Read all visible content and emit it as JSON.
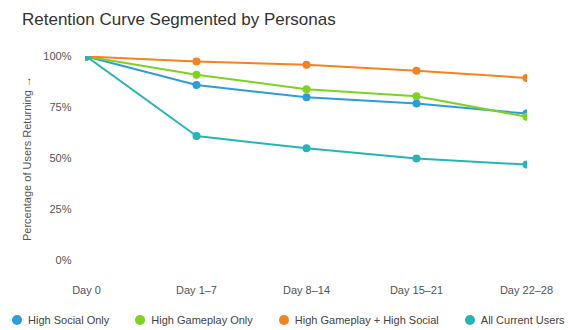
{
  "chart_data": {
    "type": "line",
    "title": "Retention Curve Segmented by Personas",
    "y_label": "Percentage of Users Returning",
    "categories": [
      "Day 0",
      "Day 1–7",
      "Day 8–14",
      "Day 15–21",
      "Day 22–28"
    ],
    "series": [
      {
        "name": "High Social Only",
        "color": "#2d9cdb",
        "values": [
          100,
          86,
          80,
          77,
          72
        ]
      },
      {
        "name": "High Gameplay Only",
        "color": "#7ed321",
        "values": [
          100,
          91,
          84,
          80.5,
          70.5
        ]
      },
      {
        "name": "High Gameplay + High Social",
        "color": "#f5821f",
        "values": [
          100,
          97.5,
          96,
          93,
          89.5
        ]
      },
      {
        "name": "All Current Users",
        "color": "#26b5b5",
        "values": [
          100,
          61,
          55,
          50,
          47
        ]
      }
    ],
    "ylim": [
      0,
      100
    ],
    "yticks": [
      {
        "value": 0,
        "label": "0%"
      },
      {
        "value": 25,
        "label": "25%"
      },
      {
        "value": 50,
        "label": "50%"
      },
      {
        "value": 75,
        "label": "75%"
      },
      {
        "value": 100,
        "label": "100%"
      }
    ],
    "grid": false,
    "legend": "bottom",
    "marker": "circle"
  }
}
